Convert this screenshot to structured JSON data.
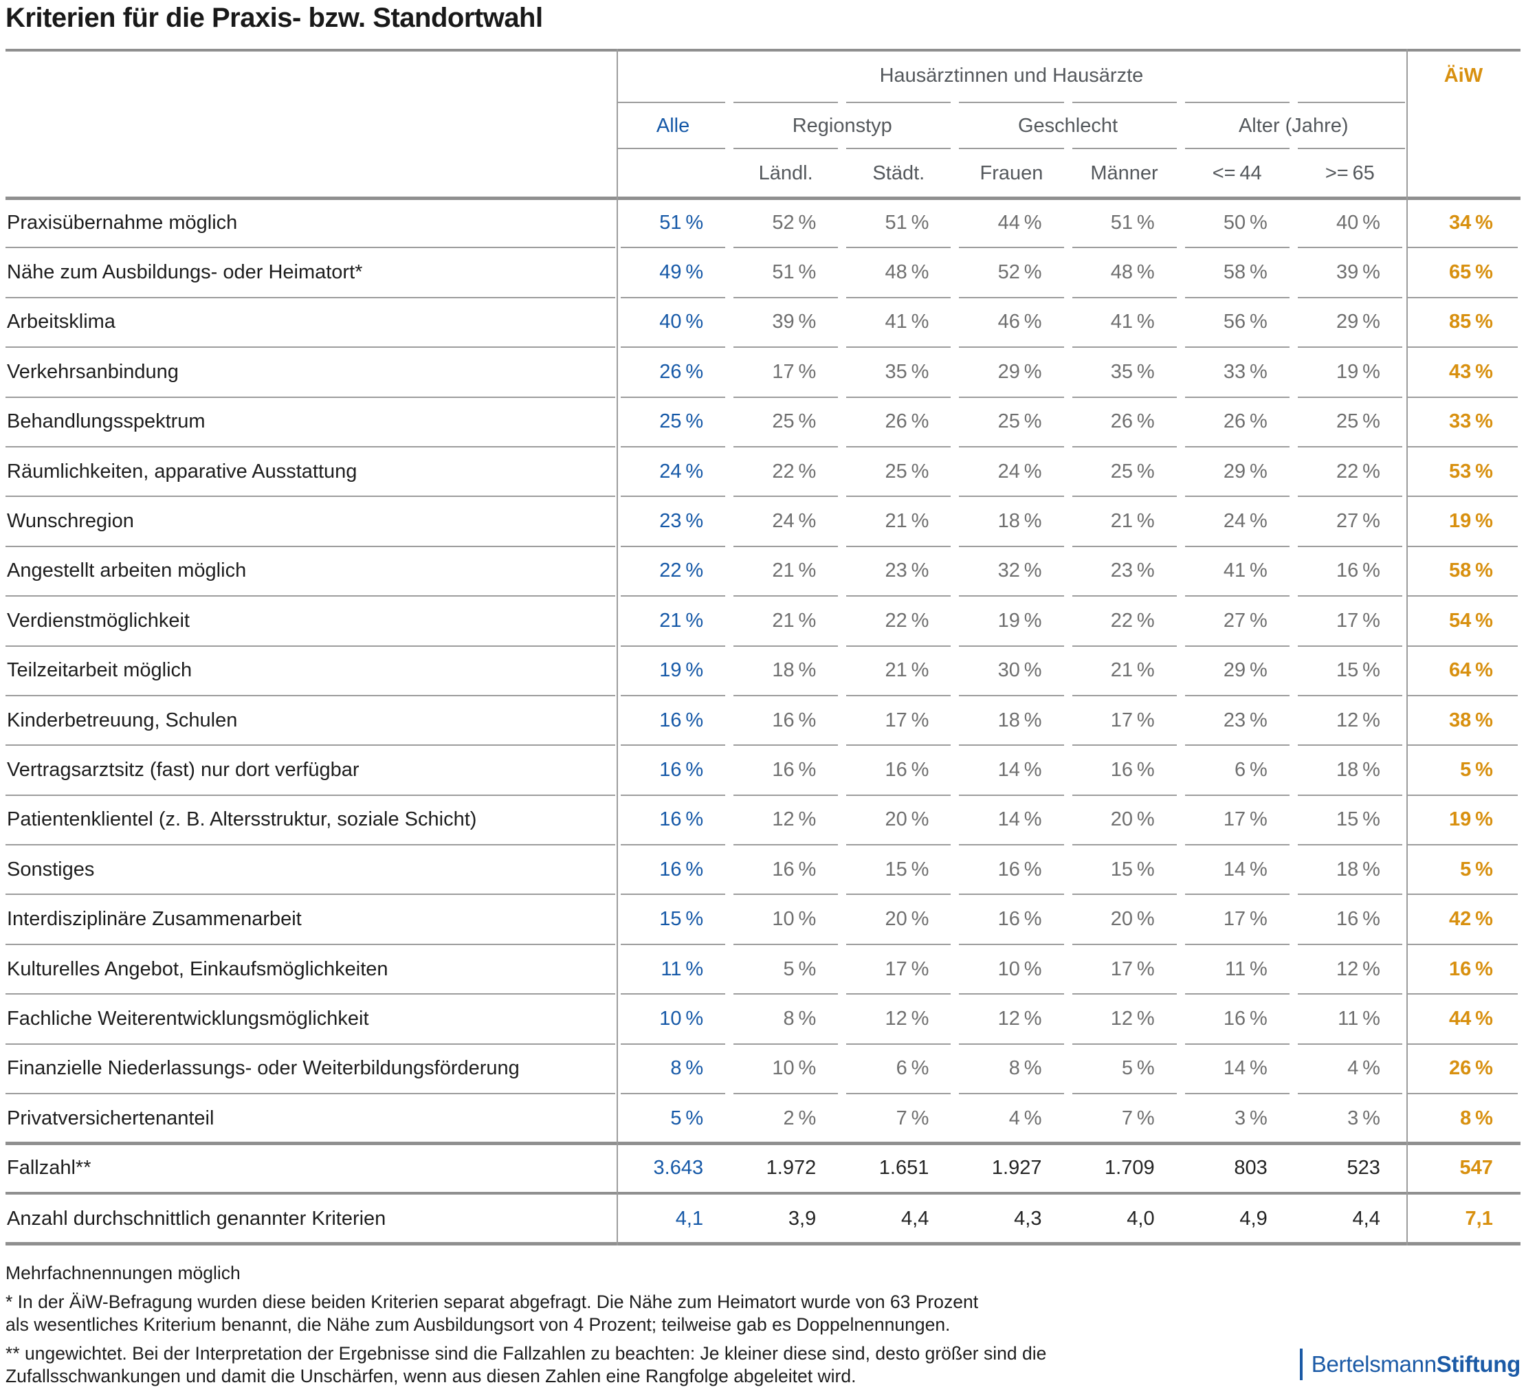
{
  "title": "Kriterien für die Praxis- bzw. Standortwahl",
  "header": {
    "group_label": "Hausärztinnen und Hausärzte",
    "aiw_label": "ÄiW",
    "alle_label": "Alle",
    "regionstyp_label": "Regionstyp",
    "geschlecht_label": "Geschlecht",
    "alter_label": "Alter (Jahre)",
    "sub_columns": [
      "Ländl.",
      "Städt.",
      "Frauen",
      "Männer",
      "<= 44",
      ">= 65"
    ]
  },
  "rows": [
    {
      "label": "Praxisübernahme möglich",
      "values": [
        "51 %",
        "52 %",
        "51 %",
        "44 %",
        "51 %",
        "50 %",
        "40 %",
        "34 %"
      ]
    },
    {
      "label": "Nähe zum Ausbildungs- oder Heimatort*",
      "values": [
        "49 %",
        "51 %",
        "48 %",
        "52 %",
        "48 %",
        "58 %",
        "39 %",
        "65 %"
      ]
    },
    {
      "label": "Arbeitsklima",
      "values": [
        "40 %",
        "39 %",
        "41 %",
        "46 %",
        "41 %",
        "56 %",
        "29 %",
        "85 %"
      ]
    },
    {
      "label": "Verkehrsanbindung",
      "values": [
        "26 %",
        "17 %",
        "35 %",
        "29 %",
        "35 %",
        "33 %",
        "19 %",
        "43 %"
      ]
    },
    {
      "label": "Behandlungsspektrum",
      "values": [
        "25 %",
        "25 %",
        "26 %",
        "25 %",
        "26 %",
        "26 %",
        "25 %",
        "33 %"
      ]
    },
    {
      "label": "Räumlichkeiten, apparative Ausstattung",
      "values": [
        "24 %",
        "22 %",
        "25 %",
        "24 %",
        "25 %",
        "29 %",
        "22 %",
        "53 %"
      ]
    },
    {
      "label": "Wunschregion",
      "values": [
        "23 %",
        "24 %",
        "21 %",
        "18 %",
        "21 %",
        "24 %",
        "27 %",
        "19 %"
      ]
    },
    {
      "label": "Angestellt arbeiten möglich",
      "values": [
        "22 %",
        "21 %",
        "23 %",
        "32 %",
        "23 %",
        "41 %",
        "16 %",
        "58 %"
      ]
    },
    {
      "label": "Verdienstmöglichkeit",
      "values": [
        "21 %",
        "21 %",
        "22 %",
        "19 %",
        "22 %",
        "27 %",
        "17 %",
        "54 %"
      ]
    },
    {
      "label": "Teilzeitarbeit möglich",
      "values": [
        "19 %",
        "18 %",
        "21 %",
        "30 %",
        "21 %",
        "29 %",
        "15 %",
        "64 %"
      ]
    },
    {
      "label": "Kinderbetreuung, Schulen",
      "values": [
        "16 %",
        "16 %",
        "17 %",
        "18 %",
        "17 %",
        "23 %",
        "12 %",
        "38 %"
      ]
    },
    {
      "label": "Vertragsarztsitz (fast) nur dort verfügbar",
      "values": [
        "16 %",
        "16 %",
        "16 %",
        "14 %",
        "16 %",
        "6 %",
        "18 %",
        "5 %"
      ]
    },
    {
      "label": "Patientenklientel (z. B. Altersstruktur, soziale Schicht)",
      "values": [
        "16 %",
        "12 %",
        "20 %",
        "14 %",
        "20 %",
        "17 %",
        "15 %",
        "19 %"
      ]
    },
    {
      "label": "Sonstiges",
      "values": [
        "16 %",
        "16 %",
        "15 %",
        "16 %",
        "15 %",
        "14 %",
        "18 %",
        "5 %"
      ]
    },
    {
      "label": "Interdisziplinäre Zusammenarbeit",
      "values": [
        "15 %",
        "10 %",
        "20 %",
        "16 %",
        "20 %",
        "17 %",
        "16 %",
        "42 %"
      ]
    },
    {
      "label": "Kulturelles Angebot, Einkaufsmöglichkeiten",
      "values": [
        "11 %",
        "5 %",
        "17 %",
        "10 %",
        "17 %",
        "11 %",
        "12 %",
        "16 %"
      ]
    },
    {
      "label": "Fachliche Weiterentwicklungsmöglichkeit",
      "values": [
        "10 %",
        "8 %",
        "12 %",
        "12 %",
        "12 %",
        "16 %",
        "11 %",
        "44 %"
      ]
    },
    {
      "label": "Finanzielle Niederlassungs- oder Weiterbildungsförderung",
      "values": [
        "8 %",
        "10 %",
        "6 %",
        "8 %",
        "5 %",
        "14 %",
        "4 %",
        "26 %"
      ]
    },
    {
      "label": "Privatversichertenanteil",
      "values": [
        "5 %",
        "2 %",
        "7 %",
        "4 %",
        "7 %",
        "3 %",
        "3 %",
        "8 %"
      ]
    },
    {
      "label": "Fallzahl**",
      "values": [
        "3.643",
        "1.972",
        "1.651",
        "1.927",
        "1.709",
        "803",
        "523",
        "547"
      ]
    },
    {
      "label": "Anzahl durchschnittlich genannter Kriterien",
      "values": [
        "4,1",
        "3,9",
        "4,4",
        "4,3",
        "4,0",
        "4,9",
        "4,4",
        "7,1"
      ]
    }
  ],
  "footnotes": {
    "note": "Mehrfachnennungen möglich",
    "star_line1": "* In der ÄiW-Befragung wurden diese beiden Kriterien separat abgefragt. Die Nähe zum Heimatort wurde von 63 Prozent",
    "star_line2": "als wesentliches Kriterium benannt, die Nähe zum Ausbildungsort von 4 Prozent; teilweise gab es Doppelnennungen.",
    "dstar_line1": "** ungewichtet. Bei der Interpretation der Ergebnisse sind die Fallzahlen zu beachten: Je kleiner diese sind, desto größer sind die",
    "dstar_line2": "Zufallsschwankungen und damit die Unschärfen, wenn aus diesen Zahlen eine Rangfolge abgeleitet wird."
  },
  "logo": {
    "name_regular": "Bertelsmann",
    "name_bold": "Stiftung"
  },
  "colors": {
    "blue": "#1558a7",
    "orange": "#d8900f",
    "value_gray": "#6f6f6f",
    "header_gray": "#54585c",
    "rule_gray": "#9c9c9c",
    "thick_gray": "#8f8f8f",
    "logo_blue": "#1b5aa6"
  },
  "chart_data": {
    "type": "table",
    "title": "Kriterien für die Praxis- bzw. Standortwahl",
    "column_groups": {
      "Hausärztinnen und Hausärzte": [
        "Alle",
        "Regionstyp: Ländl.",
        "Regionstyp: Städt.",
        "Geschlecht: Frauen",
        "Geschlecht: Männer",
        "Alter <= 44",
        "Alter >= 65"
      ],
      "separate": [
        "ÄiW"
      ]
    },
    "columns": [
      "Alle",
      "Ländl.",
      "Städt.",
      "Frauen",
      "Männer",
      "<= 44",
      ">= 65",
      "ÄiW"
    ],
    "unit": "percent (except Fallzahl and Anzahl rows)",
    "rows": [
      {
        "label": "Praxisübernahme möglich",
        "values": [
          51,
          52,
          51,
          44,
          51,
          50,
          40,
          34
        ]
      },
      {
        "label": "Nähe zum Ausbildungs- oder Heimatort*",
        "values": [
          49,
          51,
          48,
          52,
          48,
          58,
          39,
          65
        ]
      },
      {
        "label": "Arbeitsklima",
        "values": [
          40,
          39,
          41,
          46,
          41,
          56,
          29,
          85
        ]
      },
      {
        "label": "Verkehrsanbindung",
        "values": [
          26,
          17,
          35,
          29,
          35,
          33,
          19,
          43
        ]
      },
      {
        "label": "Behandlungsspektrum",
        "values": [
          25,
          25,
          26,
          25,
          26,
          26,
          25,
          33
        ]
      },
      {
        "label": "Räumlichkeiten, apparative Ausstattung",
        "values": [
          24,
          22,
          25,
          24,
          25,
          29,
          22,
          53
        ]
      },
      {
        "label": "Wunschregion",
        "values": [
          23,
          24,
          21,
          18,
          21,
          24,
          27,
          19
        ]
      },
      {
        "label": "Angestellt arbeiten möglich",
        "values": [
          22,
          21,
          23,
          32,
          23,
          41,
          16,
          58
        ]
      },
      {
        "label": "Verdienstmöglichkeit",
        "values": [
          21,
          21,
          22,
          19,
          22,
          27,
          17,
          54
        ]
      },
      {
        "label": "Teilzeitarbeit möglich",
        "values": [
          19,
          18,
          21,
          30,
          21,
          29,
          15,
          64
        ]
      },
      {
        "label": "Kinderbetreuung, Schulen",
        "values": [
          16,
          16,
          17,
          18,
          17,
          23,
          12,
          38
        ]
      },
      {
        "label": "Vertragsarztsitz (fast) nur dort verfügbar",
        "values": [
          16,
          16,
          16,
          14,
          16,
          6,
          18,
          5
        ]
      },
      {
        "label": "Patientenklientel (z. B. Altersstruktur, soziale Schicht)",
        "values": [
          16,
          12,
          20,
          14,
          20,
          17,
          15,
          19
        ]
      },
      {
        "label": "Sonstiges",
        "values": [
          16,
          16,
          15,
          16,
          15,
          14,
          18,
          5
        ]
      },
      {
        "label": "Interdisziplinäre Zusammenarbeit",
        "values": [
          15,
          10,
          20,
          16,
          20,
          17,
          16,
          42
        ]
      },
      {
        "label": "Kulturelles Angebot, Einkaufsmöglichkeiten",
        "values": [
          11,
          5,
          17,
          10,
          17,
          11,
          12,
          16
        ]
      },
      {
        "label": "Fachliche Weiterentwicklungsmöglichkeit",
        "values": [
          10,
          8,
          12,
          12,
          12,
          16,
          11,
          44
        ]
      },
      {
        "label": "Finanzielle Niederlassungs- oder Weiterbildungsförderung",
        "values": [
          8,
          10,
          6,
          8,
          5,
          14,
          4,
          26
        ]
      },
      {
        "label": "Privatversichertenanteil",
        "values": [
          5,
          2,
          7,
          4,
          7,
          3,
          3,
          8
        ]
      },
      {
        "label": "Fallzahl**",
        "values": [
          3643,
          1972,
          1651,
          1927,
          1709,
          803,
          523,
          547
        ]
      },
      {
        "label": "Anzahl durchschnittlich genannter Kriterien",
        "values": [
          4.1,
          3.9,
          4.4,
          4.3,
          4.0,
          4.9,
          4.4,
          7.1
        ]
      }
    ]
  }
}
